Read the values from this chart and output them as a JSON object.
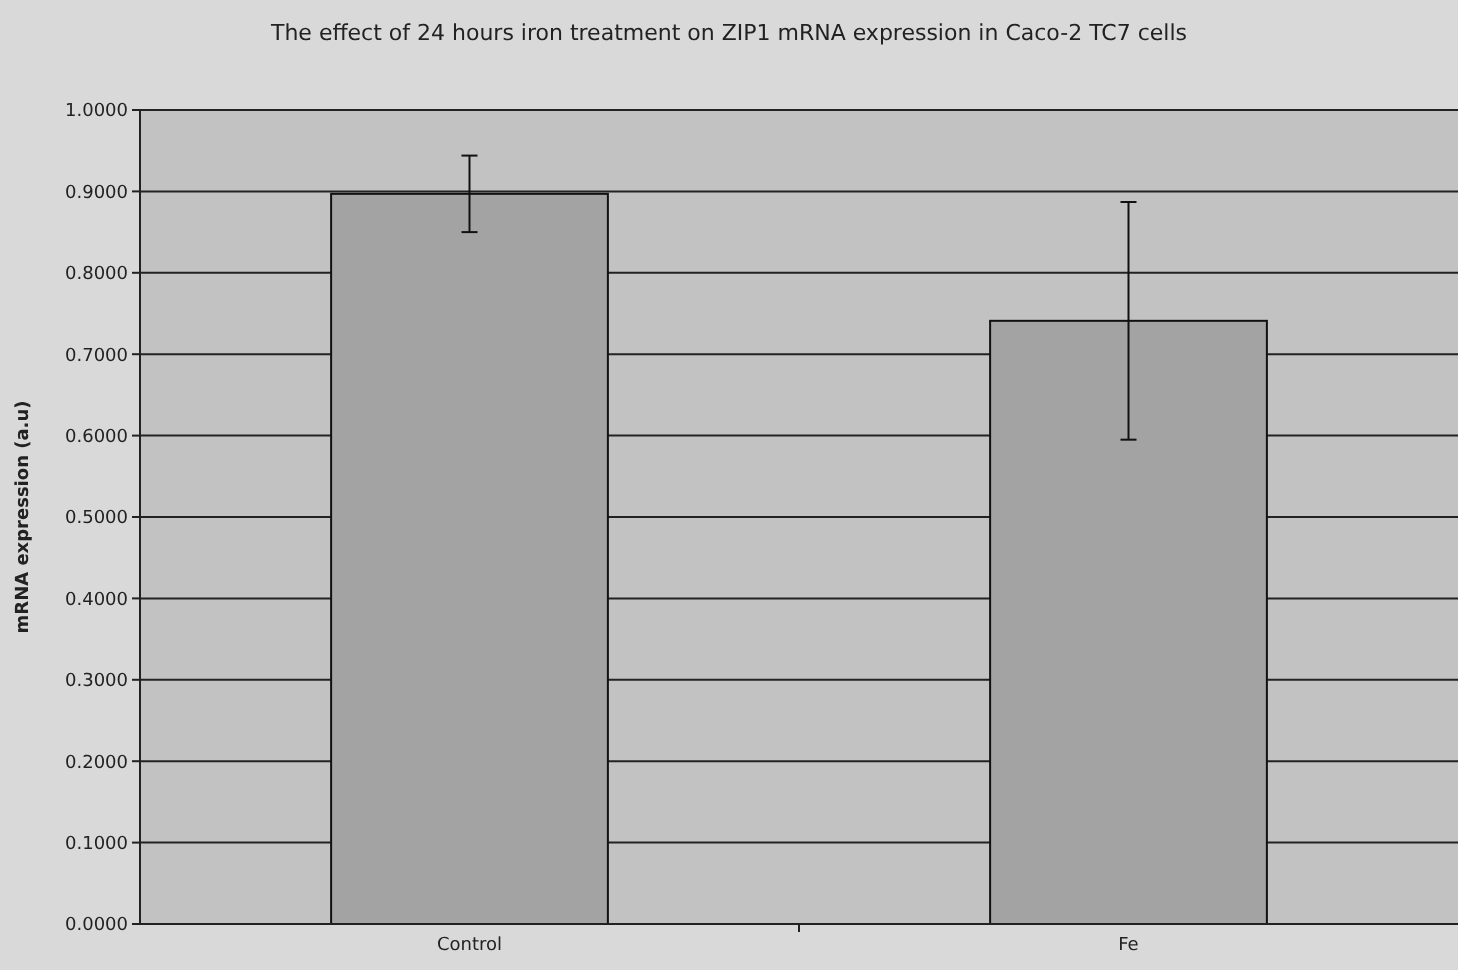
{
  "chart_data": {
    "type": "bar",
    "title": "The effect of 24 hours iron treatment on ZIP1 mRNA expression in Caco-2 TC7 cells",
    "ylabel": "mRNA expression (a.u)",
    "categories": [
      "Control",
      "Fe"
    ],
    "values": [
      0.897,
      0.741
    ],
    "errors": [
      0.047,
      0.146
    ],
    "color": "#a3a3a3",
    "ylim": [
      0,
      1
    ],
    "yticks": [
      {
        "value": 0,
        "label": "0.0000"
      },
      {
        "value": 0.1,
        "label": "0.1000"
      },
      {
        "value": 0.2,
        "label": "0.2000"
      },
      {
        "value": 0.3,
        "label": "0.3000"
      },
      {
        "value": 0.4,
        "label": "0.4000"
      },
      {
        "value": 0.5,
        "label": "0.5000"
      },
      {
        "value": 0.6,
        "label": "0.6000"
      },
      {
        "value": 0.7,
        "label": "0.7000"
      },
      {
        "value": 0.8,
        "label": "0.8000"
      },
      {
        "value": 0.9,
        "label": "0.9000"
      },
      {
        "value": 1,
        "label": "1.0000"
      }
    ],
    "grid": "y"
  }
}
